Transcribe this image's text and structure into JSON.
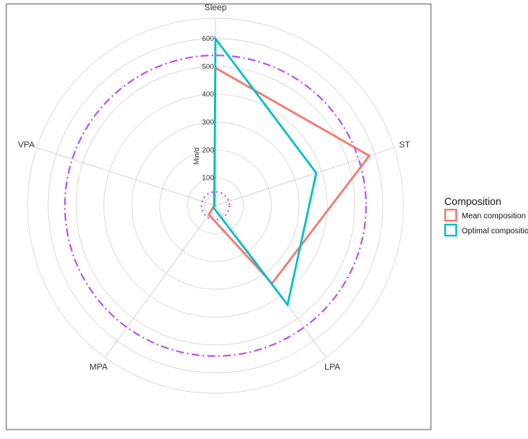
{
  "chart_data": {
    "type": "radar",
    "axes": [
      "Sleep",
      "ST",
      "LPA",
      "MPA",
      "VPA"
    ],
    "radial_label": "Min/d",
    "radial_ticks": [
      100,
      200,
      300,
      400,
      500,
      600
    ],
    "radial_range": [
      0,
      600
    ],
    "series": [
      {
        "name": "Mean composition",
        "color": "#F8766D",
        "values": [
          495,
          580,
          345,
          40,
          5
        ]
      },
      {
        "name": "Optimal composition",
        "color": "#00BFC4",
        "values": [
          600,
          380,
          440,
          10,
          2
        ]
      }
    ],
    "reference_circles": [
      {
        "value": 540,
        "color": "#B84DF8",
        "style": "dash-dot"
      },
      {
        "value": 50,
        "color": "#B84DF8",
        "style": "dotted"
      }
    ],
    "legend": {
      "title": "Composition",
      "position": "right"
    },
    "grid": true
  }
}
